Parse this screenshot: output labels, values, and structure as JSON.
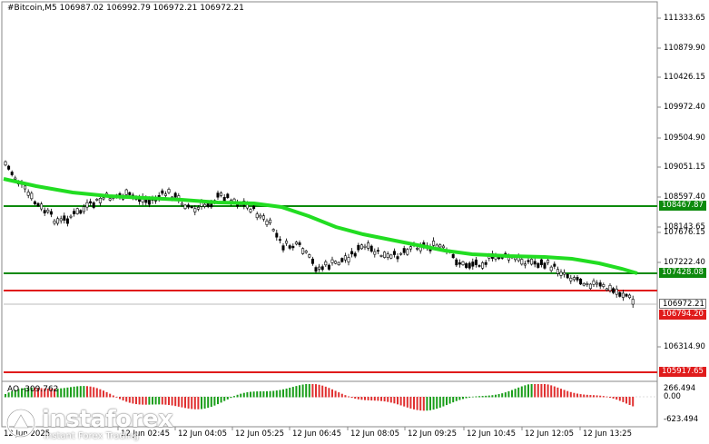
{
  "header": {
    "title": "#Bitcoin,M5  106987.02 106992.79 106972.21 106972.21"
  },
  "indicator": {
    "label": "AO -309.762",
    "scale": [
      "266.494",
      "0.00",
      "-623.494"
    ]
  },
  "price_axis": {
    "labels": [
      "111333.65",
      "110879.90",
      "110426.15",
      "109972.40",
      "109504.90",
      "109051.15",
      "108597.40",
      "108143.65",
      "107676.15",
      "107222.40",
      "106314.90"
    ]
  },
  "levels": {
    "green_upper": {
      "price": "108467.87",
      "color": "#0d8a0d"
    },
    "green_lower": {
      "price": "107428.08",
      "color": "#0d8a0d"
    },
    "red_upper": {
      "price": "106794.20",
      "color": "#e01b1b"
    },
    "red_lower": {
      "price": "105917.65",
      "color": "#e01b1b"
    },
    "current": {
      "price": "106972.21"
    }
  },
  "time_axis": {
    "labels": [
      "12 Jun 2025",
      "12 Jun 02:45",
      "12 Jun 04:05",
      "12 Jun 05:25",
      "12 Jun 06:45",
      "12 Jun 08:05",
      "12 Jun 09:25",
      "12 Jun 10:45",
      "12 Jun 12:05",
      "12 Jun 13:25"
    ]
  },
  "watermark": {
    "brand": "instaforex",
    "tagline": "Instant Forex Trading"
  },
  "colors": {
    "ma": "#22dd22",
    "up": "#1a9e1a",
    "down": "#e03030"
  }
}
